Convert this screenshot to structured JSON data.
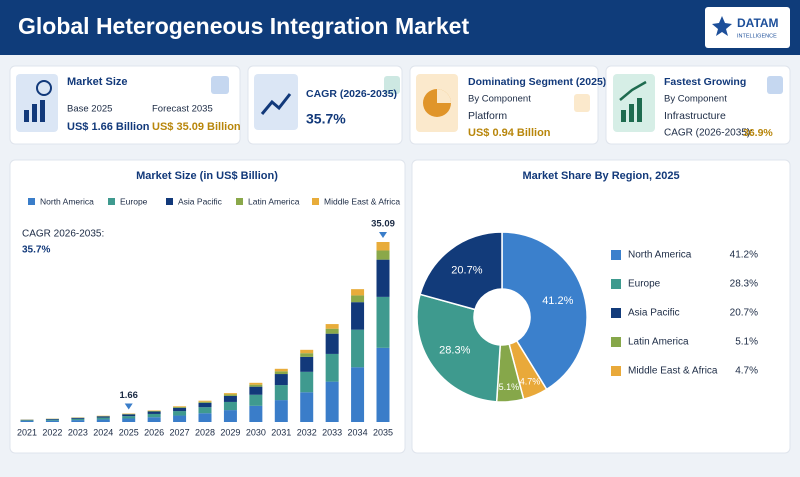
{
  "header": {
    "title": "Global Heterogeneous Integration Market",
    "logo": "DATAM",
    "logo_sub": "INTELLIGENCE"
  },
  "cards": [
    {
      "title": "Market Size",
      "base_label": "Base 2025",
      "base_value": "US$ 1.66 Billion",
      "forecast_label": "Forecast 2035",
      "forecast_value": "US$ 35.09 Billion"
    },
    {
      "title": "CAGR (2026-2035)",
      "value": "35.7%"
    },
    {
      "title": "Dominating Segment (2025)",
      "subtitle": "By Component",
      "name": "Platform",
      "value": "US$ 0.94 Billion"
    },
    {
      "title": "Fastest Growing",
      "subtitle": "By Component",
      "name": "Infrastructure",
      "value_label": "CAGR (2026-2035):",
      "value": "36.9%"
    }
  ],
  "chart_data": [
    {
      "type": "stacked_bar",
      "title": "Market Size (in US$ Billion)",
      "note": "CAGR 2026-2035:",
      "note_value": "35.7%",
      "categories": [
        "2021",
        "2022",
        "2023",
        "2024",
        "2025",
        "2026",
        "2027",
        "2028",
        "2029",
        "2030",
        "2031",
        "2032",
        "2033",
        "2034",
        "2035"
      ],
      "series": [
        {
          "name": "North America",
          "color": "#3a7dc9",
          "values": [
            0.2,
            0.27,
            0.37,
            0.5,
            0.68,
            0.93,
            1.26,
            1.71,
            2.32,
            3.15,
            4.27,
            5.8,
            7.87,
            10.67,
            14.46
          ]
        },
        {
          "name": "Europe",
          "color": "#3f9a8f",
          "values": [
            0.14,
            0.19,
            0.25,
            0.35,
            0.47,
            0.64,
            0.87,
            1.17,
            1.59,
            2.16,
            2.93,
            3.98,
            5.4,
            7.33,
            9.93
          ]
        },
        {
          "name": "Asia Pacific",
          "color": "#12397a",
          "values": [
            0.1,
            0.14,
            0.19,
            0.25,
            0.34,
            0.47,
            0.63,
            0.86,
            1.17,
            1.58,
            2.15,
            2.91,
            3.95,
            5.36,
            7.26
          ]
        },
        {
          "name": "Latin America",
          "color": "#8aa84a",
          "values": [
            0.03,
            0.03,
            0.05,
            0.06,
            0.09,
            0.11,
            0.16,
            0.21,
            0.29,
            0.39,
            0.53,
            0.72,
            0.97,
            1.32,
            1.79
          ]
        },
        {
          "name": "Middle East & Africa",
          "color": "#e8ac3a",
          "values": [
            0.02,
            0.03,
            0.04,
            0.06,
            0.08,
            0.1,
            0.14,
            0.2,
            0.26,
            0.36,
            0.49,
            0.66,
            0.9,
            1.22,
            1.65
          ]
        }
      ],
      "annotations": [
        {
          "x": "2025",
          "value": 1.66
        },
        {
          "x": "2035",
          "value": 35.09
        }
      ]
    },
    {
      "type": "donut",
      "title": "Market Share By Region, 2025",
      "categories": [
        "North America",
        "Europe",
        "Asia Pacific",
        "Latin America",
        "Middle East & Africa"
      ],
      "values": [
        41.2,
        28.3,
        20.7,
        5.1,
        4.7
      ],
      "value_labels": [
        "41.2%",
        "28.3%",
        "20.7%",
        "5.1%",
        "4.7%"
      ],
      "colors": [
        "#3b80cc",
        "#3e9a8e",
        "#123b7a",
        "#86a74a",
        "#e9a93a"
      ]
    }
  ]
}
